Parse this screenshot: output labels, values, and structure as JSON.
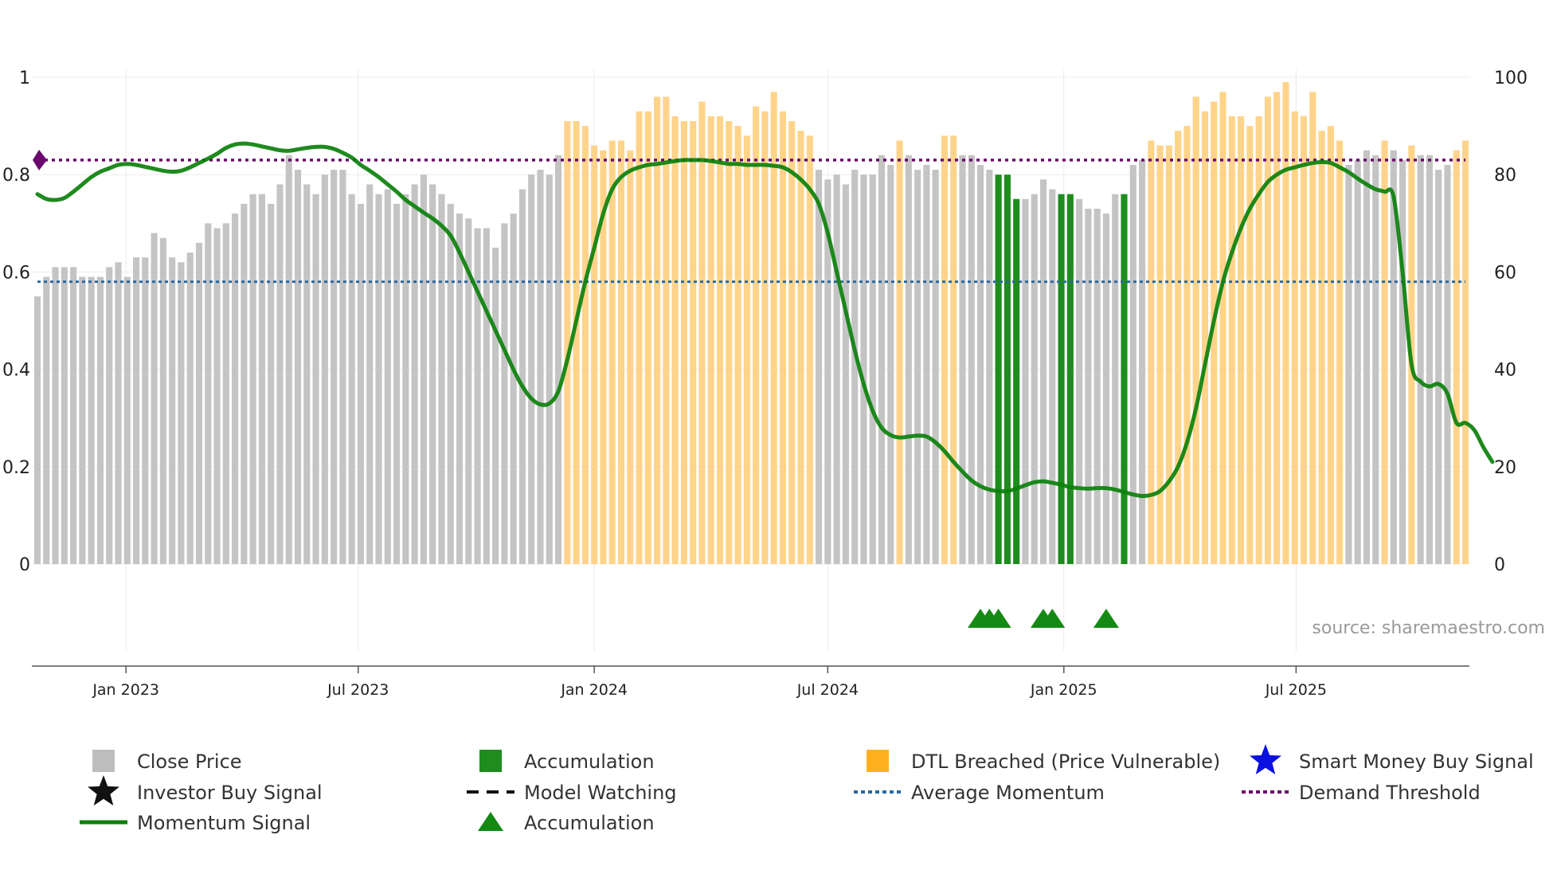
{
  "chart_data": {
    "type": "bar",
    "source": "source: sharemaestro.com",
    "x_ticks": [
      "Jan 2023",
      "Jul 2023",
      "Jan 2024",
      "Jul 2024",
      "Jan 2025",
      "Jul 2025"
    ],
    "left_axis": {
      "ylim": [
        0,
        1
      ],
      "ticks": [
        "0",
        "0.2",
        "0.4",
        "0.6",
        "0.8",
        "1"
      ]
    },
    "right_axis": {
      "ylim": [
        0,
        100
      ],
      "ticks": [
        "0",
        "20",
        "40",
        "60",
        "80",
        "100"
      ]
    },
    "average_momentum": 0.58,
    "demand_threshold": 0.83,
    "weeks_start": "2022-10-24",
    "bars": {
      "segments": [
        {
          "category": "grey",
          "values": [
            55,
            59,
            61,
            61,
            61,
            59,
            59,
            59,
            61,
            62,
            59,
            63,
            63,
            68,
            67,
            63,
            62,
            64,
            66,
            70,
            69,
            70,
            72,
            74,
            76,
            76,
            74,
            78,
            84,
            81,
            78,
            76,
            80,
            81,
            81,
            76,
            74,
            78,
            76,
            77,
            74,
            76,
            78,
            80,
            78,
            76,
            74,
            72,
            71,
            69,
            69,
            65,
            70,
            72,
            77,
            80,
            81,
            80,
            84
          ]
        },
        {
          "category": "orange",
          "values": [
            91,
            91,
            90,
            86,
            85,
            87,
            87,
            85,
            93,
            93,
            96,
            96,
            92,
            91,
            91,
            95,
            92,
            92,
            91,
            90,
            88,
            94,
            93,
            97,
            93,
            91,
            89,
            88
          ]
        },
        {
          "category": "grey",
          "values": [
            81,
            79,
            80,
            78,
            81,
            80,
            80,
            84,
            82
          ]
        },
        {
          "category": "orange",
          "values": [
            87
          ]
        },
        {
          "category": "grey",
          "values": [
            84,
            81,
            82,
            81
          ]
        },
        {
          "category": "orange",
          "values": [
            88,
            88
          ]
        },
        {
          "category": "grey",
          "values": [
            84,
            84,
            82,
            81
          ]
        },
        {
          "category": "green",
          "values": [
            80,
            80,
            75
          ]
        },
        {
          "category": "grey",
          "values": [
            75,
            76,
            79,
            77
          ]
        },
        {
          "category": "green",
          "values": [
            76,
            76
          ]
        },
        {
          "category": "grey",
          "values": [
            75,
            73,
            73,
            72,
            76
          ]
        },
        {
          "category": "green",
          "values": [
            76
          ]
        },
        {
          "category": "grey",
          "values": [
            82,
            83
          ]
        },
        {
          "category": "orange",
          "values": [
            87,
            86,
            86,
            89,
            90,
            96,
            93,
            95,
            97,
            92,
            92,
            90,
            92,
            96,
            97,
            99,
            93,
            92,
            97,
            89,
            90,
            87
          ]
        },
        {
          "category": "grey",
          "values": [
            82,
            83,
            85,
            84
          ]
        },
        {
          "category": "orange",
          "values": [
            87
          ]
        },
        {
          "category": "grey",
          "values": [
            85,
            83
          ]
        },
        {
          "category": "orange",
          "values": [
            86
          ]
        },
        {
          "category": "grey",
          "values": [
            84,
            84,
            81,
            82
          ]
        },
        {
          "category": "orange",
          "values": [
            85,
            87
          ]
        }
      ]
    },
    "momentum": [
      [
        0,
        0.76
      ],
      [
        1,
        0.75
      ],
      [
        2,
        0.748
      ],
      [
        3,
        0.752
      ],
      [
        4,
        0.765
      ],
      [
        5,
        0.78
      ],
      [
        6,
        0.795
      ],
      [
        7,
        0.806
      ],
      [
        8,
        0.813
      ],
      [
        9,
        0.82
      ],
      [
        10,
        0.822
      ],
      [
        11,
        0.82
      ],
      [
        12,
        0.816
      ],
      [
        13,
        0.812
      ],
      [
        14,
        0.808
      ],
      [
        15,
        0.806
      ],
      [
        16,
        0.808
      ],
      [
        17,
        0.815
      ],
      [
        18,
        0.824
      ],
      [
        19,
        0.833
      ],
      [
        20,
        0.843
      ],
      [
        21,
        0.855
      ],
      [
        22,
        0.862
      ],
      [
        23,
        0.864
      ],
      [
        24,
        0.862
      ],
      [
        25,
        0.858
      ],
      [
        26,
        0.854
      ],
      [
        27,
        0.85
      ],
      [
        28,
        0.849
      ],
      [
        29,
        0.852
      ],
      [
        30,
        0.855
      ],
      [
        31,
        0.857
      ],
      [
        32,
        0.857
      ],
      [
        33,
        0.853
      ],
      [
        34,
        0.845
      ],
      [
        35,
        0.835
      ],
      [
        36,
        0.82
      ],
      [
        37,
        0.808
      ],
      [
        38,
        0.795
      ],
      [
        39,
        0.78
      ],
      [
        40,
        0.765
      ],
      [
        41,
        0.748
      ],
      [
        42,
        0.735
      ],
      [
        43,
        0.722
      ],
      [
        44,
        0.71
      ],
      [
        45,
        0.695
      ],
      [
        46,
        0.675
      ],
      [
        47,
        0.64
      ],
      [
        48,
        0.6
      ],
      [
        49,
        0.56
      ],
      [
        50,
        0.52
      ],
      [
        51,
        0.48
      ],
      [
        52,
        0.44
      ],
      [
        53,
        0.4
      ],
      [
        54,
        0.365
      ],
      [
        55,
        0.34
      ],
      [
        56,
        0.328
      ],
      [
        57,
        0.33
      ],
      [
        58,
        0.355
      ],
      [
        59,
        0.42
      ],
      [
        60,
        0.5
      ],
      [
        61,
        0.58
      ],
      [
        62,
        0.65
      ],
      [
        63,
        0.72
      ],
      [
        64,
        0.77
      ],
      [
        65,
        0.795
      ],
      [
        66,
        0.808
      ],
      [
        67,
        0.815
      ],
      [
        68,
        0.82
      ],
      [
        69,
        0.822
      ],
      [
        70,
        0.825
      ],
      [
        71,
        0.828
      ],
      [
        72,
        0.83
      ],
      [
        73,
        0.83
      ],
      [
        74,
        0.83
      ],
      [
        75,
        0.828
      ],
      [
        76,
        0.825
      ],
      [
        77,
        0.822
      ],
      [
        78,
        0.822
      ],
      [
        79,
        0.82
      ],
      [
        80,
        0.82
      ],
      [
        81,
        0.82
      ],
      [
        82,
        0.818
      ],
      [
        83,
        0.815
      ],
      [
        84,
        0.805
      ],
      [
        85,
        0.79
      ],
      [
        86,
        0.77
      ],
      [
        87,
        0.74
      ],
      [
        88,
        0.68
      ],
      [
        89,
        0.6
      ],
      [
        90,
        0.52
      ],
      [
        91,
        0.44
      ],
      [
        92,
        0.37
      ],
      [
        93,
        0.315
      ],
      [
        94,
        0.28
      ],
      [
        95,
        0.265
      ],
      [
        96,
        0.26
      ],
      [
        97,
        0.262
      ],
      [
        98,
        0.264
      ],
      [
        99,
        0.262
      ],
      [
        100,
        0.25
      ],
      [
        101,
        0.232
      ],
      [
        102,
        0.21
      ],
      [
        103,
        0.19
      ],
      [
        104,
        0.172
      ],
      [
        105,
        0.16
      ],
      [
        106,
        0.153
      ],
      [
        107,
        0.15
      ],
      [
        108,
        0.15
      ],
      [
        109,
        0.155
      ],
      [
        110,
        0.162
      ],
      [
        111,
        0.168
      ],
      [
        112,
        0.17
      ],
      [
        113,
        0.167
      ],
      [
        114,
        0.163
      ],
      [
        115,
        0.158
      ],
      [
        116,
        0.156
      ],
      [
        117,
        0.155
      ],
      [
        118,
        0.156
      ],
      [
        119,
        0.156
      ],
      [
        120,
        0.153
      ],
      [
        121,
        0.148
      ],
      [
        122,
        0.143
      ],
      [
        123,
        0.14
      ],
      [
        124,
        0.142
      ],
      [
        125,
        0.15
      ],
      [
        126,
        0.17
      ],
      [
        127,
        0.2
      ],
      [
        128,
        0.25
      ],
      [
        129,
        0.32
      ],
      [
        130,
        0.41
      ],
      [
        131,
        0.5
      ],
      [
        132,
        0.58
      ],
      [
        133,
        0.64
      ],
      [
        134,
        0.69
      ],
      [
        135,
        0.73
      ],
      [
        136,
        0.76
      ],
      [
        137,
        0.785
      ],
      [
        138,
        0.8
      ],
      [
        139,
        0.81
      ],
      [
        140,
        0.815
      ],
      [
        141,
        0.82
      ],
      [
        142,
        0.824
      ],
      [
        143,
        0.826
      ],
      [
        144,
        0.824
      ],
      [
        145,
        0.815
      ],
      [
        146,
        0.805
      ],
      [
        147,
        0.792
      ],
      [
        148,
        0.78
      ],
      [
        149,
        0.77
      ],
      [
        150,
        0.765
      ],
      [
        151,
        0.755
      ],
      [
        152,
        0.6
      ],
      [
        153,
        0.41
      ],
      [
        154,
        0.375
      ],
      [
        155,
        0.365
      ],
      [
        156,
        0.37
      ],
      [
        157,
        0.35
      ],
      [
        158,
        0.29
      ],
      [
        159,
        0.29
      ],
      [
        160,
        0.275
      ],
      [
        161,
        0.24
      ],
      [
        162,
        0.21
      ]
    ],
    "accumulation_markers": [
      105,
      106,
      107,
      112,
      113,
      119
    ],
    "legend": [
      {
        "label": "Close Price",
        "marker": "grey-square"
      },
      {
        "label": "Accumulation",
        "marker": "green-square"
      },
      {
        "label": "DTL Breached (Price Vulnerable)",
        "marker": "orange-square"
      },
      {
        "label": "Smart Money Buy Signal",
        "marker": "blue-star"
      },
      {
        "label": "Investor Buy Signal",
        "marker": "black-star"
      },
      {
        "label": "Model Watching",
        "marker": "black-dashed-line"
      },
      {
        "label": "Average Momentum",
        "marker": "blue-dotted-line"
      },
      {
        "label": "Demand Threshold",
        "marker": "purple-dotted-line"
      },
      {
        "label": "Momentum Signal",
        "marker": "green-solid-line"
      },
      {
        "label": "Accumulation",
        "marker": "green-triangle"
      }
    ],
    "colors": {
      "grey": "#c4c4c4",
      "orange": "#ffd48a",
      "green": "#1e8c1e",
      "momentum": "#0b800b",
      "avg_line": "#2d6aa0",
      "threshold_line": "#6a0a6e",
      "triangle": "#148a14",
      "blue_star": "#0a10e0",
      "black_star": "#111111"
    }
  }
}
